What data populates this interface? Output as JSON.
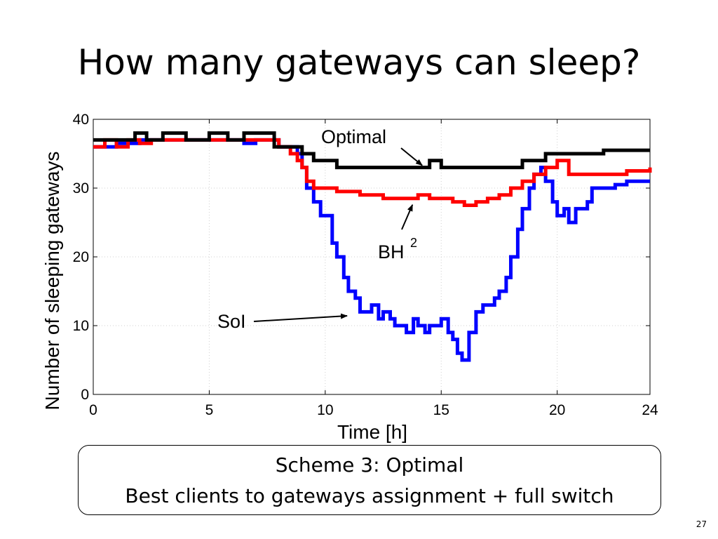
{
  "slide": {
    "title": "How many gateways can sleep?",
    "scheme_line1": "Scheme 3: Optimal",
    "scheme_line2": "Best clients to gateways assignment + full switch",
    "page_number": "27"
  },
  "chart_data": {
    "type": "line",
    "title": "",
    "xlabel": "Time [h]",
    "ylabel": "Number of sleeping gateways",
    "xlim": [
      0,
      24
    ],
    "ylim": [
      0,
      40
    ],
    "xticks": [
      0,
      5,
      10,
      15,
      20,
      24
    ],
    "yticks": [
      0,
      10,
      20,
      30,
      40
    ],
    "grid": true,
    "annotations": [
      {
        "text": "Optimal",
        "target_series": "Optimal",
        "points_to": [
          14.3,
          33
        ]
      },
      {
        "text": "BH",
        "sup": "2",
        "target_series": "BH2",
        "points_to": [
          13.7,
          28.8
        ]
      },
      {
        "text": "SoI",
        "target_series": "SoI",
        "points_to": [
          11,
          11.3
        ]
      }
    ],
    "series": [
      {
        "color": "#000000",
        "x": [
          0,
          1.5,
          1.8,
          2.3,
          3,
          4,
          5,
          5.8,
          6.5,
          7.2,
          7.7,
          7.8,
          8.5,
          9.0,
          9.5,
          10.0,
          10.5,
          11.0,
          12.0,
          13.0,
          14.0,
          14.5,
          15.0,
          16.0,
          17.0,
          18.0,
          18.3,
          18.5,
          19.0,
          19.5,
          20.0,
          20.5,
          21.0,
          21.5,
          22.0,
          22.5,
          23.0,
          23.5,
          24.0
        ],
        "y": [
          37,
          37,
          38,
          37,
          38,
          37,
          38,
          37,
          38,
          38,
          38,
          36,
          36,
          35,
          34,
          34,
          33,
          33,
          33,
          33,
          33,
          34,
          33,
          33,
          33,
          33,
          33,
          34,
          34,
          35,
          35,
          35,
          35,
          35,
          35.5,
          35.5,
          35.5,
          35.5,
          35.5
        ]
      },
      {
        "color": "#ff0000",
        "x": [
          0,
          0.5,
          1,
          1.5,
          2,
          2.5,
          3,
          4,
          5,
          6,
          7,
          7.7,
          8.0,
          8.5,
          8.8,
          9.0,
          9.2,
          9.5,
          10.0,
          10.5,
          11.0,
          11.5,
          12.0,
          12.5,
          13.0,
          13.5,
          14.0,
          14.5,
          15.0,
          15.5,
          16.0,
          16.5,
          17.0,
          17.5,
          18.0,
          18.5,
          19.0,
          19.5,
          20.0,
          20.5,
          21.0,
          21.5,
          22.0,
          22.5,
          23.0,
          23.5,
          24.0
        ],
        "y": [
          36,
          37,
          36,
          37,
          36.5,
          37,
          37,
          37,
          37,
          37,
          37,
          37,
          36,
          35,
          34,
          33,
          31,
          30,
          30,
          29.5,
          29.5,
          29,
          29,
          28.5,
          28.5,
          28.5,
          29,
          28.5,
          28.5,
          28,
          27.5,
          28,
          28.5,
          29,
          30,
          31,
          32,
          33,
          34,
          32,
          32,
          32,
          32,
          32,
          32.5,
          32.5,
          33
        ]
      },
      {
        "color": "#0000ff",
        "x": [
          0,
          1,
          2,
          3,
          4,
          5,
          6,
          6.5,
          7,
          7.7,
          8.0,
          8.5,
          8.8,
          9.0,
          9.2,
          9.5,
          9.8,
          10.0,
          10.3,
          10.5,
          10.8,
          11.0,
          11.3,
          11.5,
          11.8,
          12.0,
          12.3,
          12.5,
          12.8,
          13.0,
          13.3,
          13.5,
          13.8,
          14.0,
          14.3,
          14.5,
          14.8,
          15.0,
          15.3,
          15.5,
          15.7,
          15.9,
          16.2,
          16.5,
          16.8,
          17.0,
          17.3,
          17.5,
          17.8,
          18.0,
          18.3,
          18.5,
          18.8,
          19.0,
          19.3,
          19.5,
          19.8,
          20.0,
          20.3,
          20.5,
          20.8,
          21.0,
          21.3,
          21.5,
          22.0,
          22.5,
          23.0,
          23.5,
          24.0
        ],
        "y": [
          36,
          36.5,
          37,
          37,
          37,
          37,
          37,
          36.5,
          37,
          37,
          36,
          36,
          35,
          33,
          30,
          28,
          26,
          26,
          22,
          20,
          17,
          15,
          14,
          12,
          12,
          13,
          11,
          12,
          11,
          10,
          10,
          9,
          11,
          10,
          9,
          10,
          10,
          11,
          9,
          8,
          6,
          5,
          9,
          12,
          13,
          13,
          14,
          15,
          17,
          20,
          24,
          27,
          30,
          32,
          33,
          31,
          28,
          26,
          27,
          25,
          27,
          27,
          28,
          30,
          30,
          30.5,
          31,
          31,
          31
        ]
      }
    ]
  }
}
